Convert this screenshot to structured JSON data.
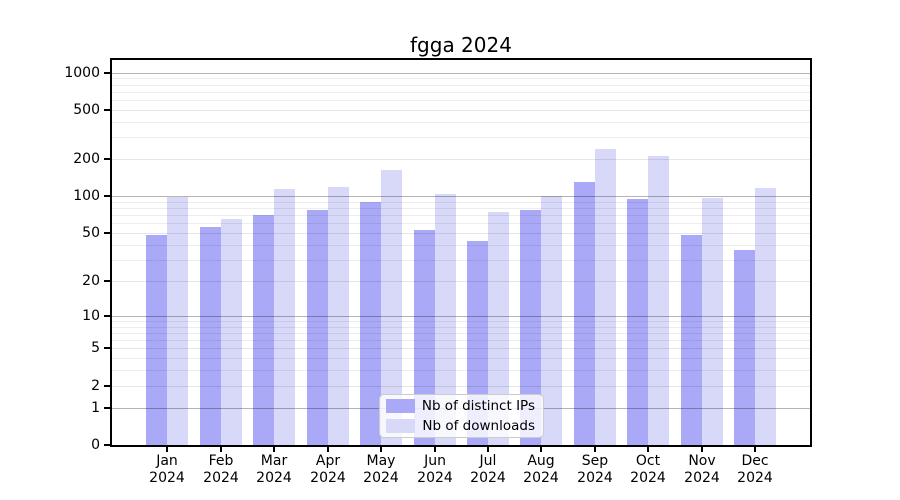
{
  "title": "fgga 2024",
  "chart_data": {
    "type": "bar",
    "title": "fgga 2024",
    "categories": [
      "Jan",
      "Feb",
      "Mar",
      "Apr",
      "May",
      "Jun",
      "Jul",
      "Aug",
      "Sep",
      "Oct",
      "Nov",
      "Dec"
    ],
    "xtick_year": "2024",
    "series": [
      {
        "name": "Nb of distinct IPs",
        "color": "#a9a9f8",
        "values": [
          48,
          56,
          70,
          77,
          89,
          53,
          43,
          77,
          130,
          95,
          48,
          36
        ]
      },
      {
        "name": "Nb of downloads",
        "color": "#d8d8f8",
        "values": [
          98,
          65,
          114,
          119,
          163,
          104,
          74,
          101,
          240,
          213,
          97,
          117
        ]
      }
    ],
    "yticks": [
      0,
      1,
      2,
      5,
      10,
      20,
      50,
      100,
      200,
      500,
      1000
    ],
    "yscale": "log10(1+x)",
    "ylim": [
      0,
      1250
    ],
    "xlabel": "",
    "ylabel": "",
    "grid": true,
    "legend_position": "bottom-center",
    "colors": {
      "grid_major": "#b4b4b4",
      "grid_minor": "#ededed",
      "axis": "#000000",
      "background": "#ffffff"
    }
  }
}
